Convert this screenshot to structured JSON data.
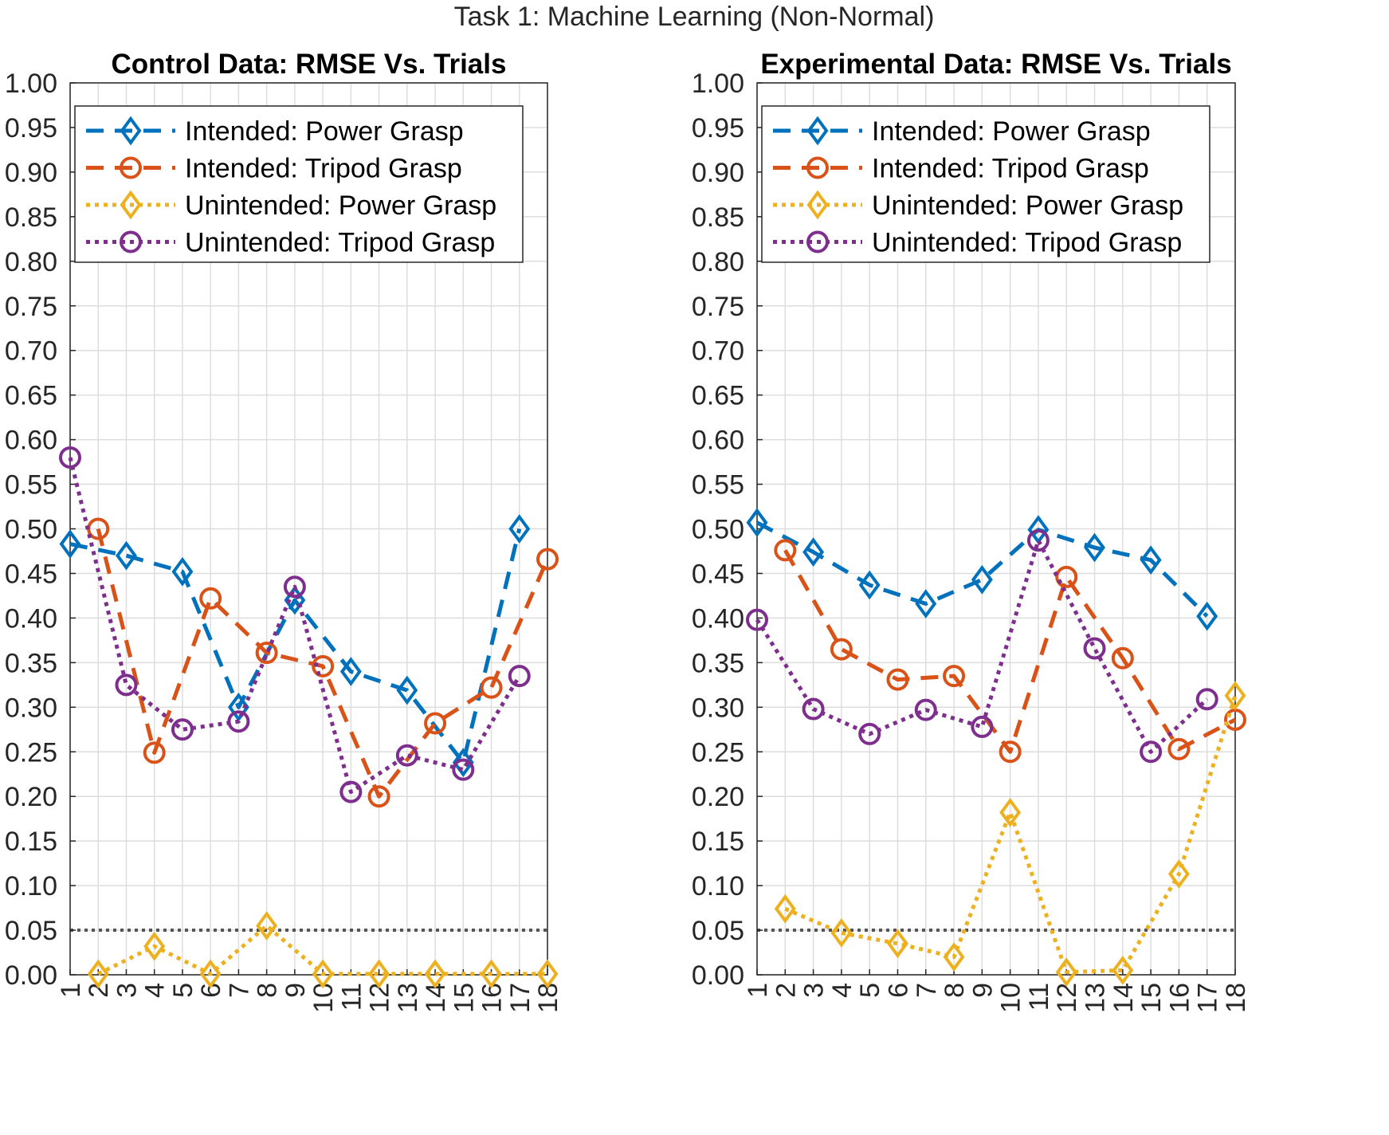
{
  "figure": {
    "suptitle": "Task 1: Machine Learning (Non-Normal)"
  },
  "colors": {
    "intended_power": "#0072BD",
    "intended_tripod": "#D95319",
    "unintended_power": "#EDB120",
    "unintended_tripod": "#7E2F8E",
    "reference_line": "#555555",
    "grid": "#dddddd",
    "axes": "#262626"
  },
  "chart_data": [
    {
      "type": "line",
      "title": "Control Data: RMSE Vs. Trials",
      "xlabel": "",
      "ylabel": "",
      "x": [
        1,
        2,
        3,
        4,
        5,
        6,
        7,
        8,
        9,
        10,
        11,
        12,
        13,
        14,
        15,
        16,
        17,
        18
      ],
      "xlim": [
        1,
        18
      ],
      "ylim": [
        0,
        1
      ],
      "yticks": [
        "0.00",
        "0.05",
        "0.10",
        "0.15",
        "0.20",
        "0.25",
        "0.30",
        "0.35",
        "0.40",
        "0.45",
        "0.50",
        "0.55",
        "0.60",
        "0.65",
        "0.70",
        "0.75",
        "0.80",
        "0.85",
        "0.90",
        "0.95",
        "1.00"
      ],
      "xticks": [
        "1",
        "2",
        "3",
        "4",
        "5",
        "6",
        "7",
        "8",
        "9",
        "10",
        "11",
        "12",
        "13",
        "14",
        "15",
        "16",
        "17",
        "18"
      ],
      "grid": true,
      "legend_position": "top",
      "reference_line": 0.05,
      "series": [
        {
          "name": "Intended: Power Grasp",
          "values": [
            0.483,
            null,
            0.47,
            null,
            0.452,
            null,
            0.3,
            null,
            0.42,
            null,
            0.34,
            null,
            0.319,
            null,
            0.238,
            null,
            0.5,
            null
          ]
        },
        {
          "name": "Intended: Tripod Grasp",
          "values": [
            null,
            0.5,
            null,
            0.249,
            null,
            0.422,
            null,
            0.361,
            null,
            0.346,
            null,
            0.2,
            null,
            0.282,
            null,
            0.322,
            null,
            0.466
          ]
        },
        {
          "name": "Unintended: Power Grasp",
          "values": [
            null,
            0.001,
            null,
            0.032,
            null,
            0.001,
            null,
            0.055,
            null,
            0.001,
            null,
            0.001,
            null,
            0.001,
            null,
            0.001,
            null,
            0.001
          ]
        },
        {
          "name": "Unintended: Tripod Grasp",
          "values": [
            0.58,
            null,
            0.325,
            null,
            0.275,
            null,
            0.284,
            null,
            0.435,
            null,
            0.205,
            null,
            0.246,
            null,
            0.23,
            null,
            0.335,
            null
          ]
        }
      ]
    },
    {
      "type": "line",
      "title": "Experimental Data: RMSE Vs. Trials",
      "xlabel": "",
      "ylabel": "",
      "x": [
        1,
        2,
        3,
        4,
        5,
        6,
        7,
        8,
        9,
        10,
        11,
        12,
        13,
        14,
        15,
        16,
        17,
        18
      ],
      "xlim": [
        1,
        18
      ],
      "ylim": [
        0,
        1
      ],
      "yticks": [
        "0.00",
        "0.05",
        "0.10",
        "0.15",
        "0.20",
        "0.25",
        "0.30",
        "0.35",
        "0.40",
        "0.45",
        "0.50",
        "0.55",
        "0.60",
        "0.65",
        "0.70",
        "0.75",
        "0.80",
        "0.85",
        "0.90",
        "0.95",
        "1.00"
      ],
      "xticks": [
        "1",
        "2",
        "3",
        "4",
        "5",
        "6",
        "7",
        "8",
        "9",
        "10",
        "11",
        "12",
        "13",
        "14",
        "15",
        "16",
        "17",
        "18"
      ],
      "grid": true,
      "legend_position": "top",
      "reference_line": 0.05,
      "series": [
        {
          "name": "Intended: Power Grasp",
          "values": [
            0.507,
            null,
            0.474,
            null,
            0.437,
            null,
            0.416,
            null,
            0.443,
            null,
            0.499,
            null,
            0.479,
            null,
            0.465,
            null,
            0.402,
            null
          ]
        },
        {
          "name": "Intended: Tripod Grasp",
          "values": [
            null,
            0.476,
            null,
            0.365,
            null,
            0.331,
            null,
            0.335,
            null,
            0.25,
            null,
            0.446,
            null,
            0.355,
            null,
            0.253,
            null,
            0.286
          ]
        },
        {
          "name": "Unintended: Power Grasp",
          "values": [
            null,
            0.074,
            null,
            0.047,
            null,
            0.035,
            null,
            0.02,
            null,
            0.182,
            null,
            0.003,
            null,
            0.005,
            null,
            0.113,
            null,
            0.313
          ]
        },
        {
          "name": "Unintended: Tripod Grasp",
          "values": [
            0.398,
            null,
            0.298,
            null,
            0.27,
            null,
            0.297,
            null,
            0.278,
            null,
            0.487,
            null,
            0.366,
            null,
            0.25,
            null,
            0.309,
            null
          ]
        }
      ]
    }
  ]
}
